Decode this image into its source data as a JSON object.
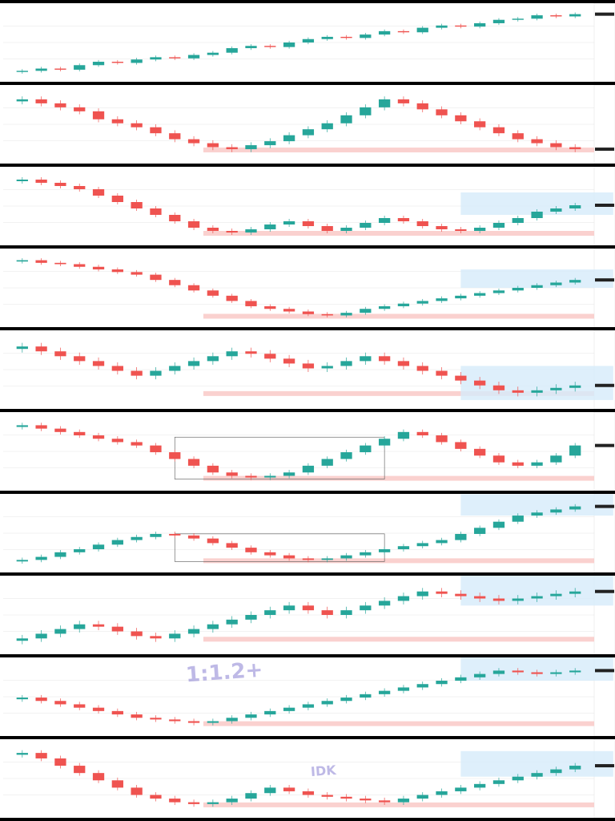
{
  "document": {
    "layout": "vertical-stack",
    "panel_count": 10
  },
  "colors": {
    "page_background": "#000000",
    "chart_background": "#ffffff",
    "bullish_candle": "#26a69a",
    "bearish_candle": "#ef5350",
    "demand_zone_fill": "#f9c9c7",
    "demand_zone_strong": "#e57373",
    "target_zone_fill": "#d6ebfa",
    "range_box_stroke": "#555555",
    "callout_border": "#9ed6e8",
    "grid_line": "#e6e6e6",
    "watermark_purple": "#6e64c8"
  },
  "panels": [
    {
      "index": 1,
      "header": "",
      "callout": ""
    },
    {
      "index": 2,
      "header": "",
      "callout": ""
    },
    {
      "index": 3,
      "header": "",
      "callout": ""
    },
    {
      "index": 4,
      "header": "",
      "callout": ""
    },
    {
      "index": 5,
      "header": "",
      "callout": ""
    },
    {
      "index": 6,
      "header": "",
      "callout": ""
    },
    {
      "index": 7,
      "header": "",
      "callout": ""
    },
    {
      "index": 8,
      "header": "",
      "callout": ""
    },
    {
      "index": 9,
      "header": "",
      "callout": "",
      "watermark": "1:1.2+"
    },
    {
      "index": 10,
      "header": "",
      "callout": "",
      "watermark": "IDK"
    }
  ],
  "chart_data": [
    {
      "type": "candlestick",
      "title": "",
      "series": [
        {
          "values": [
            50,
            52,
            51,
            55,
            58,
            57,
            60,
            62,
            61,
            64,
            66,
            70,
            72,
            71,
            75,
            78,
            80,
            79,
            82,
            85,
            84,
            88,
            90,
            89,
            92,
            95,
            96,
            99,
            98,
            100
          ]
        }
      ],
      "zones": []
    },
    {
      "type": "candlestick",
      "title": "",
      "series": [
        {
          "values": [
            80,
            78,
            76,
            74,
            70,
            68,
            66,
            63,
            60,
            58,
            56,
            55,
            57,
            59,
            62,
            65,
            68,
            72,
            76,
            80,
            78,
            75,
            72,
            69,
            66,
            63,
            60,
            58,
            56,
            55
          ]
        }
      ],
      "zones": [
        "demand"
      ]
    },
    {
      "type": "candlestick",
      "title": "",
      "series": [
        {
          "values": [
            90,
            88,
            86,
            84,
            80,
            76,
            72,
            68,
            64,
            60,
            58,
            57,
            59,
            62,
            64,
            61,
            58,
            60,
            63,
            66,
            64,
            61,
            59,
            58,
            60,
            63,
            66,
            70,
            72,
            74
          ]
        }
      ],
      "zones": [
        "demand",
        "target"
      ]
    },
    {
      "type": "candlestick",
      "title": "",
      "series": [
        {
          "values": [
            95,
            93,
            92,
            90,
            88,
            86,
            84,
            80,
            76,
            72,
            68,
            64,
            60,
            58,
            56,
            54,
            53,
            55,
            58,
            60,
            62,
            64,
            66,
            68,
            70,
            72,
            74,
            76,
            78,
            80
          ]
        }
      ],
      "zones": [
        "demand",
        "target"
      ]
    },
    {
      "type": "candlestick",
      "title": "",
      "series": [
        {
          "values": [
            78,
            76,
            74,
            72,
            70,
            68,
            66,
            68,
            70,
            72,
            74,
            76,
            75,
            73,
            71,
            69,
            70,
            72,
            74,
            72,
            70,
            68,
            66,
            64,
            62,
            60,
            59,
            60,
            61,
            62
          ]
        }
      ],
      "zones": [
        "demand",
        "target"
      ]
    },
    {
      "type": "candlestick",
      "title": "",
      "series": [
        {
          "values": [
            88,
            86,
            84,
            82,
            80,
            78,
            76,
            72,
            68,
            64,
            60,
            58,
            57,
            58,
            60,
            64,
            68,
            72,
            76,
            80,
            84,
            82,
            78,
            74,
            70,
            66,
            64,
            66,
            70,
            76
          ]
        }
      ],
      "zones": [
        "demand",
        "range"
      ]
    },
    {
      "type": "candlestick",
      "title": "",
      "series": [
        {
          "values": [
            55,
            57,
            60,
            62,
            65,
            68,
            70,
            72,
            71,
            69,
            66,
            63,
            60,
            58,
            56,
            55,
            56,
            58,
            60,
            62,
            64,
            66,
            68,
            72,
            76,
            80,
            84,
            86,
            88,
            90
          ]
        }
      ],
      "zones": [
        "demand",
        "range",
        "target"
      ]
    },
    {
      "type": "candlestick",
      "title": "",
      "series": [
        {
          "values": [
            60,
            62,
            64,
            66,
            65,
            63,
            61,
            60,
            62,
            64,
            66,
            68,
            70,
            72,
            74,
            72,
            70,
            72,
            74,
            76,
            78,
            80,
            79,
            78,
            77,
            76,
            77,
            78,
            79,
            80
          ]
        }
      ],
      "zones": [
        "demand",
        "target"
      ]
    },
    {
      "type": "candlestick",
      "title": "",
      "series": [
        {
          "values": [
            70,
            68,
            66,
            64,
            62,
            60,
            58,
            57,
            56,
            55,
            56,
            58,
            60,
            62,
            64,
            66,
            68,
            70,
            72,
            74,
            76,
            78,
            80,
            82,
            84,
            86,
            85,
            84,
            85,
            86
          ]
        }
      ],
      "zones": [
        "demand",
        "target"
      ]
    },
    {
      "type": "candlestick",
      "title": "",
      "series": [
        {
          "values": [
            85,
            82,
            78,
            74,
            70,
            66,
            62,
            60,
            58,
            57,
            58,
            60,
            63,
            66,
            64,
            62,
            61,
            60,
            59,
            58,
            60,
            62,
            64,
            66,
            68,
            70,
            72,
            74,
            76,
            78
          ]
        }
      ],
      "zones": [
        "demand",
        "target"
      ]
    }
  ]
}
